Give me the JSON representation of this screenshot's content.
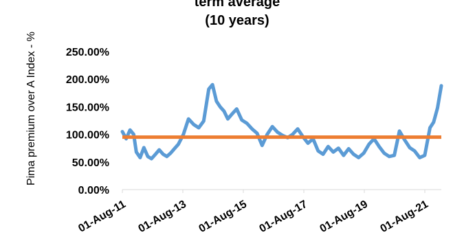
{
  "chart_data": {
    "type": "line",
    "title_lines": [
      "term average",
      "(10 years)"
    ],
    "ylabel": "Pima premium over A Index - %",
    "xlabel": "",
    "y_ticks": [
      "0.00%",
      "50.00%",
      "100.00%",
      "150.00%",
      "200.00%",
      "250.00%"
    ],
    "ylim": [
      0,
      250
    ],
    "x_ticks": [
      "01-Aug-11",
      "01-Aug-13",
      "01-Aug-15",
      "01-Aug-17",
      "01-Aug-19",
      "01-Aug-21"
    ],
    "xlim": [
      "2011-08-01",
      "2022-01-15"
    ],
    "grid": false,
    "series": [
      {
        "color": "#5B9BD5",
        "x": [
          "2011-08-01",
          "2011-09-15",
          "2011-11-01",
          "2011-12-15",
          "2012-01-15",
          "2012-03-01",
          "2012-04-15",
          "2012-06-01",
          "2012-07-15",
          "2012-09-01",
          "2012-10-15",
          "2012-12-01",
          "2013-01-15",
          "2013-03-01",
          "2013-04-15",
          "2013-06-01",
          "2013-08-01",
          "2013-10-01",
          "2013-12-01",
          "2014-02-01",
          "2014-04-01",
          "2014-06-01",
          "2014-07-15",
          "2014-09-01",
          "2014-10-15",
          "2014-12-01",
          "2015-01-15",
          "2015-03-01",
          "2015-05-01",
          "2015-07-01",
          "2015-09-01",
          "2015-11-01",
          "2016-01-01",
          "2016-03-01",
          "2016-05-01",
          "2016-07-01",
          "2016-09-01",
          "2016-11-01",
          "2017-01-01",
          "2017-03-01",
          "2017-05-01",
          "2017-07-01",
          "2017-09-01",
          "2017-11-01",
          "2018-01-01",
          "2018-03-01",
          "2018-05-01",
          "2018-07-01",
          "2018-09-01",
          "2018-11-01",
          "2019-01-01",
          "2019-03-01",
          "2019-05-01",
          "2019-07-01",
          "2019-09-01",
          "2019-11-01",
          "2020-01-01",
          "2020-03-01",
          "2020-05-01",
          "2020-07-01",
          "2020-09-01",
          "2020-11-01",
          "2021-01-01",
          "2021-03-01",
          "2021-05-01",
          "2021-07-01",
          "2021-09-01",
          "2021-10-15",
          "2021-12-01",
          "2022-01-15"
        ],
        "y": [
          105,
          92,
          108,
          100,
          68,
          58,
          76,
          60,
          56,
          64,
          72,
          64,
          60,
          66,
          74,
          82,
          100,
          128,
          118,
          112,
          124,
          182,
          190,
          160,
          150,
          142,
          128,
          136,
          146,
          126,
          120,
          110,
          102,
          80,
          100,
          114,
          104,
          98,
          94,
          100,
          110,
          96,
          84,
          92,
          70,
          64,
          78,
          68,
          75,
          62,
          74,
          64,
          58,
          66,
          82,
          92,
          78,
          66,
          60,
          62,
          106,
          90,
          76,
          70,
          58,
          62,
          112,
          122,
          148,
          188
        ]
      }
    ],
    "reference_line": {
      "value": 95,
      "color": "#ED7D31"
    }
  }
}
